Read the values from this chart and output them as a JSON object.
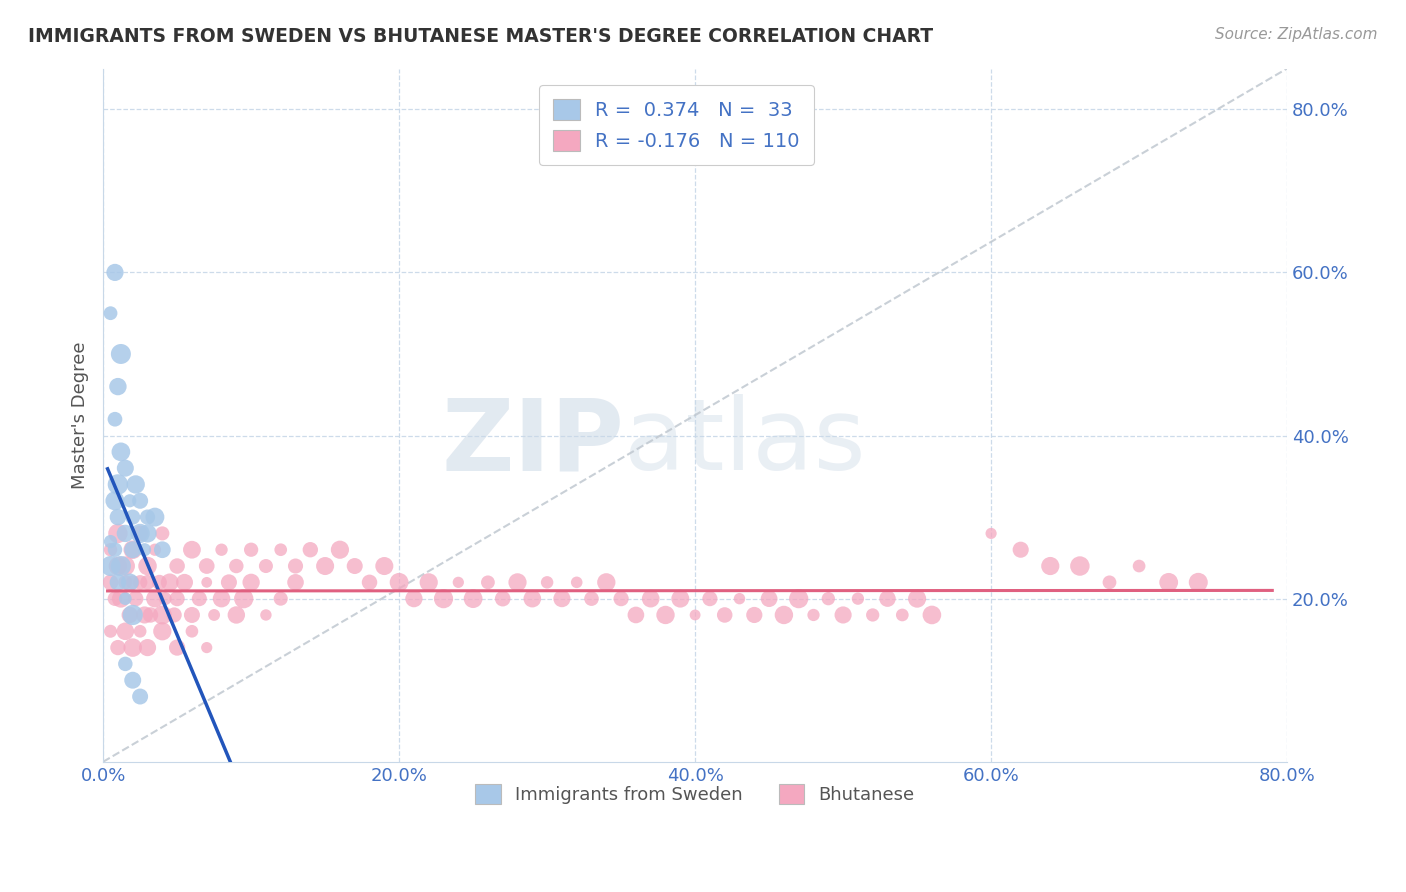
{
  "title": "IMMIGRANTS FROM SWEDEN VS BHUTANESE MASTER'S DEGREE CORRELATION CHART",
  "source_text": "Source: ZipAtlas.com",
  "ylabel": "Master's Degree",
  "xlim": [
    0.0,
    0.8
  ],
  "ylim": [
    0.0,
    0.85
  ],
  "xtick_vals": [
    0.0,
    0.2,
    0.4,
    0.6,
    0.8
  ],
  "ytick_vals": [
    0.2,
    0.4,
    0.6,
    0.8
  ],
  "legend_label1": "R =  0.374   N =  33",
  "legend_label2": "R = -0.176   N = 110",
  "color_sweden": "#a8c8e8",
  "color_bhutan": "#f4a8c0",
  "trendline_color_sweden": "#2255bb",
  "trendline_color_bhutan": "#e06080",
  "trendline_dashed_color": "#c0c8d0",
  "background_color": "#ffffff",
  "watermark_zip": "ZIP",
  "watermark_atlas": "atlas",
  "sweden_scatter": [
    [
      0.005,
      0.27
    ],
    [
      0.008,
      0.32
    ],
    [
      0.01,
      0.3
    ],
    [
      0.012,
      0.38
    ],
    [
      0.01,
      0.34
    ],
    [
      0.015,
      0.28
    ],
    [
      0.015,
      0.36
    ],
    [
      0.018,
      0.32
    ],
    [
      0.02,
      0.3
    ],
    [
      0.02,
      0.26
    ],
    [
      0.022,
      0.34
    ],
    [
      0.025,
      0.28
    ],
    [
      0.025,
      0.32
    ],
    [
      0.028,
      0.26
    ],
    [
      0.03,
      0.3
    ],
    [
      0.005,
      0.24
    ],
    [
      0.008,
      0.26
    ],
    [
      0.01,
      0.22
    ],
    [
      0.012,
      0.24
    ],
    [
      0.015,
      0.2
    ],
    [
      0.018,
      0.22
    ],
    [
      0.02,
      0.18
    ],
    [
      0.008,
      0.42
    ],
    [
      0.01,
      0.46
    ],
    [
      0.012,
      0.5
    ],
    [
      0.005,
      0.55
    ],
    [
      0.008,
      0.6
    ],
    [
      0.035,
      0.3
    ],
    [
      0.03,
      0.28
    ],
    [
      0.04,
      0.26
    ],
    [
      0.015,
      0.12
    ],
    [
      0.02,
      0.1
    ],
    [
      0.025,
      0.08
    ]
  ],
  "bhutan_scatter": [
    [
      0.005,
      0.22
    ],
    [
      0.008,
      0.2
    ],
    [
      0.01,
      0.24
    ],
    [
      0.012,
      0.2
    ],
    [
      0.015,
      0.22
    ],
    [
      0.018,
      0.18
    ],
    [
      0.02,
      0.22
    ],
    [
      0.022,
      0.2
    ],
    [
      0.025,
      0.22
    ],
    [
      0.028,
      0.18
    ],
    [
      0.03,
      0.22
    ],
    [
      0.032,
      0.18
    ],
    [
      0.035,
      0.2
    ],
    [
      0.038,
      0.22
    ],
    [
      0.04,
      0.18
    ],
    [
      0.042,
      0.2
    ],
    [
      0.045,
      0.22
    ],
    [
      0.048,
      0.18
    ],
    [
      0.05,
      0.2
    ],
    [
      0.055,
      0.22
    ],
    [
      0.06,
      0.18
    ],
    [
      0.065,
      0.2
    ],
    [
      0.07,
      0.22
    ],
    [
      0.075,
      0.18
    ],
    [
      0.08,
      0.2
    ],
    [
      0.085,
      0.22
    ],
    [
      0.09,
      0.18
    ],
    [
      0.095,
      0.2
    ],
    [
      0.1,
      0.22
    ],
    [
      0.11,
      0.18
    ],
    [
      0.12,
      0.2
    ],
    [
      0.13,
      0.22
    ],
    [
      0.005,
      0.26
    ],
    [
      0.01,
      0.28
    ],
    [
      0.015,
      0.24
    ],
    [
      0.02,
      0.26
    ],
    [
      0.025,
      0.28
    ],
    [
      0.03,
      0.24
    ],
    [
      0.035,
      0.26
    ],
    [
      0.04,
      0.28
    ],
    [
      0.05,
      0.24
    ],
    [
      0.06,
      0.26
    ],
    [
      0.07,
      0.24
    ],
    [
      0.08,
      0.26
    ],
    [
      0.09,
      0.24
    ],
    [
      0.1,
      0.26
    ],
    [
      0.11,
      0.24
    ],
    [
      0.12,
      0.26
    ],
    [
      0.13,
      0.24
    ],
    [
      0.14,
      0.26
    ],
    [
      0.15,
      0.24
    ],
    [
      0.16,
      0.26
    ],
    [
      0.17,
      0.24
    ],
    [
      0.18,
      0.22
    ],
    [
      0.19,
      0.24
    ],
    [
      0.2,
      0.22
    ],
    [
      0.21,
      0.2
    ],
    [
      0.22,
      0.22
    ],
    [
      0.23,
      0.2
    ],
    [
      0.24,
      0.22
    ],
    [
      0.25,
      0.2
    ],
    [
      0.26,
      0.22
    ],
    [
      0.27,
      0.2
    ],
    [
      0.28,
      0.22
    ],
    [
      0.29,
      0.2
    ],
    [
      0.3,
      0.22
    ],
    [
      0.31,
      0.2
    ],
    [
      0.32,
      0.22
    ],
    [
      0.33,
      0.2
    ],
    [
      0.34,
      0.22
    ],
    [
      0.35,
      0.2
    ],
    [
      0.36,
      0.18
    ],
    [
      0.37,
      0.2
    ],
    [
      0.38,
      0.18
    ],
    [
      0.39,
      0.2
    ],
    [
      0.4,
      0.18
    ],
    [
      0.41,
      0.2
    ],
    [
      0.42,
      0.18
    ],
    [
      0.43,
      0.2
    ],
    [
      0.44,
      0.18
    ],
    [
      0.45,
      0.2
    ],
    [
      0.46,
      0.18
    ],
    [
      0.47,
      0.2
    ],
    [
      0.48,
      0.18
    ],
    [
      0.49,
      0.2
    ],
    [
      0.5,
      0.18
    ],
    [
      0.51,
      0.2
    ],
    [
      0.52,
      0.18
    ],
    [
      0.53,
      0.2
    ],
    [
      0.54,
      0.18
    ],
    [
      0.55,
      0.2
    ],
    [
      0.56,
      0.18
    ],
    [
      0.6,
      0.28
    ],
    [
      0.62,
      0.26
    ],
    [
      0.64,
      0.24
    ],
    [
      0.66,
      0.24
    ],
    [
      0.68,
      0.22
    ],
    [
      0.7,
      0.24
    ],
    [
      0.72,
      0.22
    ],
    [
      0.74,
      0.22
    ],
    [
      0.005,
      0.16
    ],
    [
      0.01,
      0.14
    ],
    [
      0.015,
      0.16
    ],
    [
      0.02,
      0.14
    ],
    [
      0.025,
      0.16
    ],
    [
      0.03,
      0.14
    ],
    [
      0.04,
      0.16
    ],
    [
      0.05,
      0.14
    ],
    [
      0.06,
      0.16
    ],
    [
      0.07,
      0.14
    ]
  ]
}
